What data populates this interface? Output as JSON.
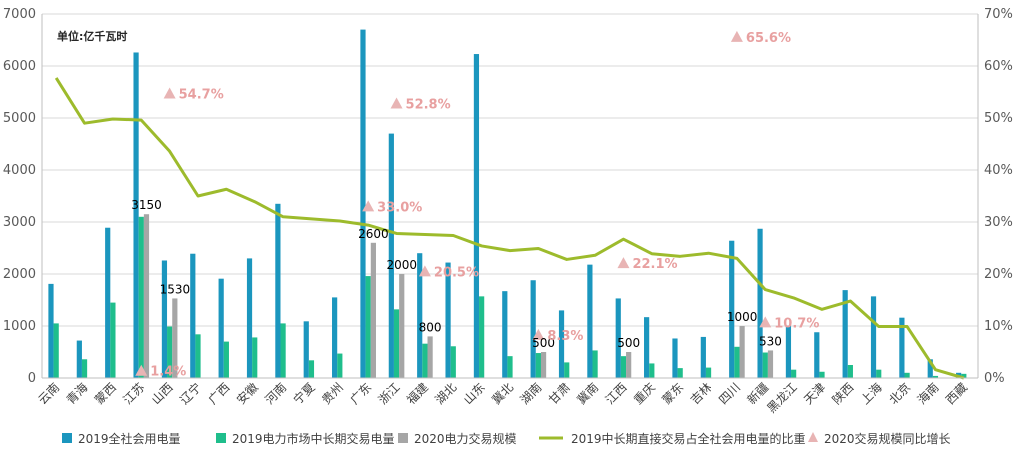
{
  "chart_data": {
    "type": "bar",
    "unit_label": "单位:亿千瓦时",
    "categories": [
      "云南",
      "青海",
      "蒙西",
      "江苏",
      "山西",
      "辽宁",
      "广西",
      "安徽",
      "河南",
      "宁夏",
      "贵州",
      "广东",
      "浙江",
      "福建",
      "湖北",
      "山东",
      "冀北",
      "湖南",
      "甘肃",
      "冀南",
      "江西",
      "重庆",
      "蒙东",
      "吉林",
      "四川",
      "新疆",
      "黑龙江",
      "天津",
      "陕西",
      "上海",
      "北京",
      "海南",
      "西藏"
    ],
    "y_left": {
      "min": 0,
      "max": 7000,
      "ticks": [
        "0",
        "1000",
        "2000",
        "3000",
        "4000",
        "5000",
        "6000",
        "7000"
      ]
    },
    "y_right": {
      "min": 0,
      "max": 70,
      "ticks": [
        "0%",
        "10%",
        "20%",
        "30%",
        "40%",
        "50%",
        "60%",
        "70%"
      ]
    },
    "series": [
      {
        "name": "2019全社会用电量",
        "type": "bar",
        "axis": "left",
        "color": "#1b96be",
        "values": [
          1810,
          720,
          2890,
          6260,
          2260,
          2390,
          1910,
          2300,
          3350,
          1090,
          1550,
          6700,
          4700,
          2400,
          2220,
          6230,
          1670,
          1880,
          1300,
          2180,
          1530,
          1170,
          760,
          790,
          2640,
          2870,
          1010,
          880,
          1690,
          1570,
          1160,
          360,
          100
        ]
      },
      {
        "name": "2019电力市场中长期交易电量",
        "type": "bar",
        "axis": "left",
        "color": "#1fbe8c",
        "values": [
          1050,
          360,
          1450,
          3100,
          990,
          840,
          700,
          780,
          1050,
          340,
          470,
          1960,
          1320,
          660,
          610,
          1570,
          420,
          480,
          300,
          530,
          420,
          280,
          190,
          200,
          600,
          490,
          160,
          120,
          250,
          160,
          100,
          40,
          80
        ]
      },
      {
        "name": "2020电力交易规模",
        "type": "bar",
        "axis": "left",
        "color": "#a6a6a6",
        "values": [
          null,
          null,
          null,
          3150,
          1530,
          null,
          null,
          null,
          null,
          null,
          null,
          2600,
          2000,
          800,
          null,
          null,
          null,
          500,
          null,
          null,
          500,
          null,
          null,
          null,
          1000,
          530,
          null,
          null,
          null,
          null,
          null,
          null,
          null
        ],
        "labels": [
          "",
          "",
          "",
          "3150",
          "1530",
          "",
          "",
          "",
          "",
          "",
          "",
          "2600",
          "2000",
          "800",
          "",
          "",
          "",
          "500",
          "",
          "",
          "500",
          "",
          "",
          "",
          "1000",
          "530",
          "",
          "",
          "",
          "",
          "",
          "",
          ""
        ]
      },
      {
        "name": "2019中长期直接交易占全社会用电量的比重",
        "type": "line",
        "axis": "right",
        "color": "#9dbb2c",
        "values": [
          57.7,
          49.0,
          49.8,
          49.6,
          43.6,
          35.0,
          36.3,
          33.9,
          31.0,
          30.6,
          30.2,
          29.4,
          27.8,
          27.6,
          27.4,
          25.4,
          24.5,
          24.9,
          22.8,
          23.6,
          26.7,
          23.9,
          23.4,
          24.0,
          23.0,
          17.0,
          15.4,
          13.2,
          14.8,
          9.9,
          9.9,
          1.6,
          0.0
        ]
      },
      {
        "name": "2020交易规模同比增长",
        "type": "scatter",
        "axis": "right",
        "color": "#e8b4b4",
        "points": [
          {
            "category": "江苏",
            "y": 1.4,
            "label": "1.4%"
          },
          {
            "category": "山西",
            "y": 54.7,
            "label": "54.7%"
          },
          {
            "category": "广东",
            "y": 33.0,
            "label": "33.0%"
          },
          {
            "category": "浙江",
            "y": 52.8,
            "label": "52.8%"
          },
          {
            "category": "福建",
            "y": 20.5,
            "label": "20.5%"
          },
          {
            "category": "湖南",
            "y": 8.3,
            "label": "8.3%"
          },
          {
            "category": "江西",
            "y": 22.1,
            "label": "22.1%"
          },
          {
            "category": "四川",
            "y": 65.6,
            "label": "65.6%"
          },
          {
            "category": "新疆",
            "y": 10.7,
            "label": "10.7%"
          }
        ]
      }
    ],
    "grid": true,
    "legend_position": "bottom"
  }
}
